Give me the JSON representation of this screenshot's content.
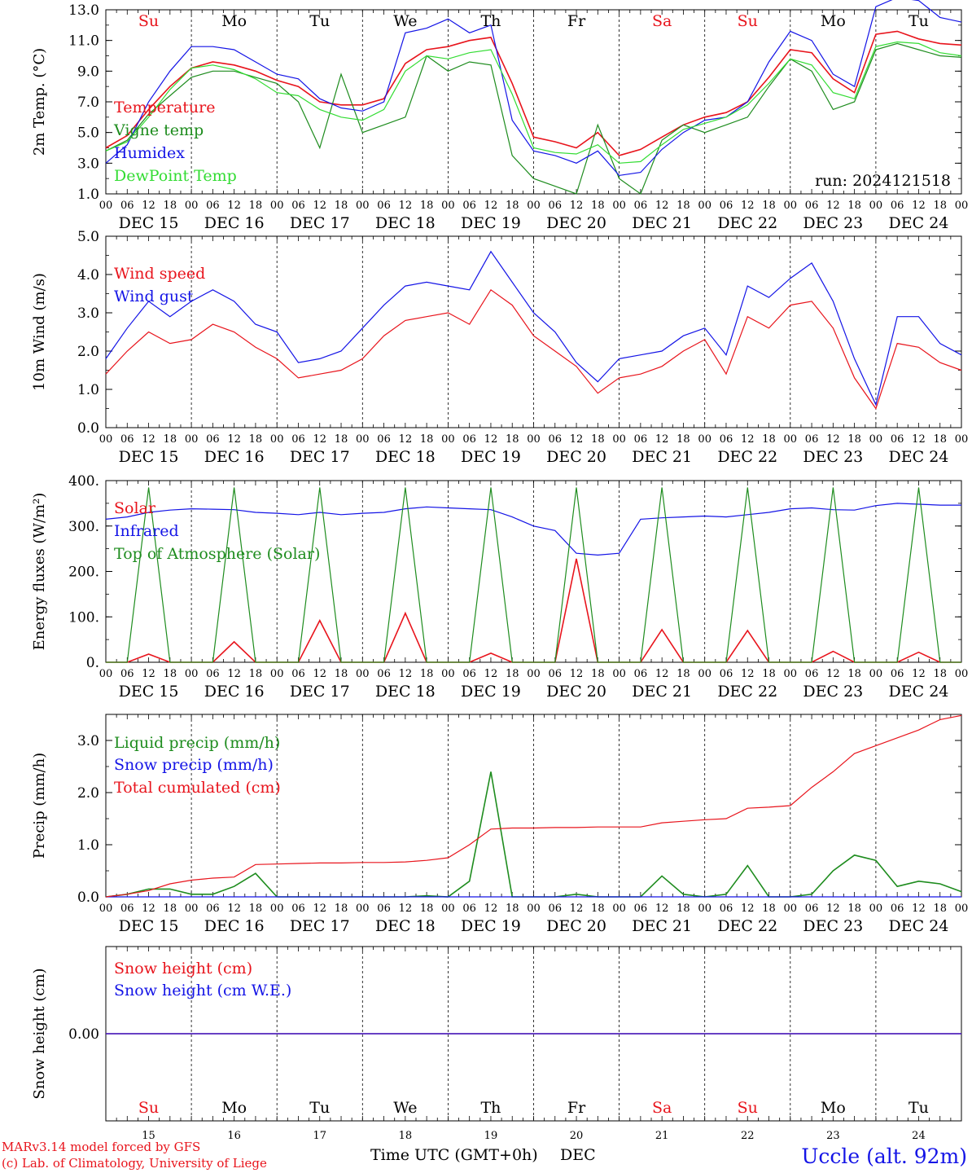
{
  "footer": {
    "credit_line1": "MARv3.14 model forced by GFS",
    "credit_line2": "(c) Lab. of Climatology, University of Liege",
    "time_label": "Time UTC (GMT+0h)",
    "month_label": "DEC",
    "station": "Uccle (alt. 92m)"
  },
  "colors": {
    "red": "#e8141c",
    "blue": "#1414e6",
    "dark_green": "#1e8c1e",
    "light_green": "#32dc32",
    "weekend": "#e8141c",
    "weekday": "#000000"
  },
  "days": {
    "weekday_abbr": [
      "Su",
      "Mo",
      "Tu",
      "We",
      "Th",
      "Fr",
      "Sa",
      "Su",
      "Mo",
      "Tu"
    ],
    "weekend_flags": [
      true,
      false,
      false,
      false,
      false,
      false,
      true,
      true,
      false,
      false
    ],
    "date_labels": [
      "DEC 15",
      "DEC 16",
      "DEC 17",
      "DEC 18",
      "DEC 19",
      "DEC 20",
      "DEC 21",
      "DEC 22",
      "DEC 23",
      "DEC 24"
    ],
    "day_numbers": [
      "15",
      "16",
      "17",
      "18",
      "19",
      "20",
      "21",
      "22",
      "23",
      "24"
    ],
    "hour_ticks": [
      "00",
      "06",
      "12",
      "18"
    ],
    "final_hour": "00"
  },
  "chart_data": [
    {
      "type": "line",
      "ylabel": "2m Temp. (°C)",
      "ylim": [
        1.0,
        13.0
      ],
      "ytick_labels": [
        "1.0",
        "3.0",
        "5.0",
        "7.0",
        "9.0",
        "11.0",
        "13.0"
      ],
      "annotation": "run: 2024121518",
      "x_hours": [
        0,
        6,
        12,
        18,
        24,
        30,
        36,
        42,
        48,
        54,
        60,
        66,
        72,
        78,
        84,
        90,
        96,
        102,
        108,
        114,
        120,
        126,
        132,
        138,
        144,
        150,
        156,
        162,
        168,
        174,
        180,
        186,
        192,
        198,
        204,
        210,
        216,
        222,
        228,
        234,
        240
      ],
      "series": [
        {
          "name": "Temperature",
          "color": "#e8141c",
          "values": [
            4.0,
            4.8,
            6.5,
            8.0,
            9.2,
            9.6,
            9.4,
            9.0,
            8.4,
            8.0,
            7.0,
            6.8,
            6.8,
            7.2,
            9.5,
            10.4,
            10.6,
            11.0,
            11.2,
            8.2,
            4.7,
            4.4,
            4.0,
            5.0,
            3.5,
            3.9,
            4.7,
            5.5,
            6.0,
            6.3,
            7.0,
            8.6,
            10.4,
            10.2,
            8.5,
            7.6,
            11.4,
            11.6,
            11.1,
            10.8,
            10.7
          ]
        },
        {
          "name": "Vigne temp",
          "color": "#1e8c1e",
          "values": [
            3.8,
            4.5,
            6.2,
            7.4,
            8.6,
            9.0,
            9.0,
            8.6,
            8.2,
            7.0,
            4.0,
            8.8,
            5.0,
            5.5,
            6.0,
            10.0,
            9.0,
            9.6,
            9.4,
            3.5,
            2.0,
            1.5,
            1.0,
            5.5,
            2.0,
            1.0,
            4.5,
            5.5,
            5.0,
            5.5,
            6.0,
            8.0,
            9.8,
            9.0,
            6.5,
            7.0,
            10.4,
            10.8,
            10.4,
            10.0,
            9.9
          ]
        },
        {
          "name": "Humidex",
          "color": "#1414e6",
          "values": [
            3.0,
            4.2,
            7.0,
            9.0,
            10.6,
            10.6,
            10.4,
            9.6,
            8.8,
            8.5,
            7.2,
            6.6,
            6.4,
            7.0,
            11.5,
            11.8,
            12.4,
            11.5,
            12.0,
            5.8,
            3.8,
            3.5,
            3.0,
            3.8,
            2.2,
            2.4,
            3.9,
            5.0,
            5.8,
            6.0,
            7.0,
            9.6,
            11.6,
            11.0,
            8.8,
            8.0,
            13.2,
            13.8,
            13.6,
            12.5,
            12.2
          ]
        },
        {
          "name": "DewPoint Temp",
          "color": "#32dc32",
          "values": [
            3.8,
            4.4,
            6.0,
            7.8,
            9.2,
            9.4,
            9.1,
            8.5,
            7.6,
            7.4,
            6.5,
            6.0,
            5.8,
            6.5,
            9.0,
            10.0,
            9.8,
            10.2,
            10.4,
            7.5,
            4.0,
            3.7,
            3.6,
            4.2,
            3.0,
            3.1,
            4.2,
            5.2,
            5.6,
            6.0,
            6.8,
            8.2,
            9.8,
            9.4,
            7.6,
            7.2,
            10.6,
            10.9,
            10.8,
            10.2,
            10.0
          ]
        }
      ]
    },
    {
      "type": "line",
      "ylabel": "10m Wind (m/s)",
      "ylim": [
        0.0,
        5.0
      ],
      "ytick_labels": [
        "0.0",
        "1.0",
        "2.0",
        "3.0",
        "4.0",
        "5.0"
      ],
      "x_hours": [
        0,
        6,
        12,
        18,
        24,
        30,
        36,
        42,
        48,
        54,
        60,
        66,
        72,
        78,
        84,
        90,
        96,
        102,
        108,
        114,
        120,
        126,
        132,
        138,
        144,
        150,
        156,
        162,
        168,
        174,
        180,
        186,
        192,
        198,
        204,
        210,
        216,
        222,
        228,
        234,
        240
      ],
      "series": [
        {
          "name": "Wind speed",
          "color": "#e8141c",
          "values": [
            1.4,
            2.0,
            2.5,
            2.2,
            2.3,
            2.7,
            2.5,
            2.1,
            1.8,
            1.3,
            1.4,
            1.5,
            1.8,
            2.4,
            2.8,
            2.9,
            3.0,
            2.7,
            3.6,
            3.2,
            2.4,
            2.0,
            1.6,
            0.9,
            1.3,
            1.4,
            1.6,
            2.0,
            2.3,
            1.4,
            2.9,
            2.6,
            3.2,
            3.3,
            2.6,
            1.3,
            0.5,
            2.2,
            2.1,
            1.7,
            1.5
          ]
        },
        {
          "name": "Wind gust",
          "color": "#1414e6",
          "values": [
            1.8,
            2.6,
            3.3,
            2.9,
            3.3,
            3.6,
            3.3,
            2.7,
            2.5,
            1.7,
            1.8,
            2.0,
            2.6,
            3.2,
            3.7,
            3.8,
            3.7,
            3.6,
            4.6,
            3.8,
            3.0,
            2.5,
            1.7,
            1.2,
            1.8,
            1.9,
            2.0,
            2.4,
            2.6,
            1.9,
            3.7,
            3.4,
            3.9,
            4.3,
            3.3,
            1.8,
            0.6,
            2.9,
            2.9,
            2.2,
            1.9
          ]
        }
      ]
    },
    {
      "type": "line",
      "ylabel": "Energy fluxes (W/m²)",
      "ylim": [
        0,
        400
      ],
      "ytick_labels": [
        "0.",
        "100.",
        "200.",
        "300.",
        "400."
      ],
      "x_hours": [
        0,
        6,
        12,
        18,
        24,
        30,
        36,
        42,
        48,
        54,
        60,
        66,
        72,
        78,
        84,
        90,
        96,
        102,
        108,
        114,
        120,
        126,
        132,
        138,
        144,
        150,
        156,
        162,
        168,
        174,
        180,
        186,
        192,
        198,
        204,
        210,
        216,
        222,
        228,
        234,
        240
      ],
      "series": [
        {
          "name": "Solar",
          "color": "#e8141c",
          "values": [
            0,
            0,
            18,
            0,
            0,
            0,
            45,
            0,
            0,
            0,
            92,
            0,
            0,
            0,
            108,
            0,
            0,
            0,
            20,
            0,
            0,
            0,
            228,
            0,
            0,
            0,
            72,
            0,
            0,
            0,
            70,
            0,
            0,
            0,
            24,
            0,
            0,
            0,
            22,
            0,
            0
          ]
        },
        {
          "name": "Infrared",
          "color": "#1414e6",
          "values": [
            315,
            320,
            330,
            335,
            338,
            337,
            336,
            330,
            328,
            325,
            330,
            325,
            328,
            330,
            338,
            342,
            340,
            338,
            336,
            320,
            300,
            290,
            240,
            236,
            240,
            315,
            318,
            320,
            322,
            320,
            325,
            330,
            338,
            340,
            336,
            335,
            345,
            350,
            348,
            346,
            346
          ]
        },
        {
          "name": "Top of Atmosphere (Solar)",
          "color": "#1e8c1e",
          "values": [
            0,
            0,
            385,
            0,
            0,
            0,
            385,
            0,
            0,
            0,
            385,
            0,
            0,
            0,
            385,
            0,
            0,
            0,
            385,
            0,
            0,
            0,
            385,
            0,
            0,
            0,
            385,
            0,
            0,
            0,
            385,
            0,
            0,
            0,
            385,
            0,
            0,
            0,
            385,
            0,
            0
          ]
        }
      ]
    },
    {
      "type": "line",
      "ylabel": "Precip (mm/h)",
      "ylim": [
        0.0,
        3.5
      ],
      "ytick_labels": [
        "0.0",
        "1.0",
        "2.0",
        "3.0"
      ],
      "x_hours": [
        0,
        6,
        12,
        18,
        24,
        30,
        36,
        42,
        48,
        54,
        60,
        66,
        72,
        78,
        84,
        90,
        96,
        102,
        108,
        114,
        120,
        126,
        132,
        138,
        144,
        150,
        156,
        162,
        168,
        174,
        180,
        186,
        192,
        198,
        204,
        210,
        216,
        222,
        228,
        234,
        240
      ],
      "series": [
        {
          "name": "Liquid precip (mm/h)",
          "color": "#1e8c1e",
          "values": [
            0.0,
            0.05,
            0.15,
            0.15,
            0.05,
            0.05,
            0.2,
            0.45,
            0.0,
            0.0,
            0.0,
            0.0,
            0.0,
            0.0,
            0.0,
            0.02,
            0.0,
            0.3,
            2.4,
            0.0,
            0.0,
            0.0,
            0.05,
            0.0,
            0.0,
            0.0,
            0.4,
            0.05,
            0.0,
            0.05,
            0.6,
            0.0,
            0.0,
            0.05,
            0.5,
            0.8,
            0.7,
            0.2,
            0.3,
            0.25,
            0.1
          ]
        },
        {
          "name": "Snow precip (mm/h)",
          "color": "#1414e6",
          "values": [
            0,
            0,
            0,
            0,
            0,
            0,
            0,
            0,
            0,
            0,
            0,
            0,
            0,
            0,
            0,
            0,
            0,
            0,
            0,
            0,
            0,
            0,
            0,
            0,
            0,
            0,
            0,
            0,
            0,
            0,
            0,
            0,
            0,
            0,
            0,
            0,
            0,
            0,
            0,
            0,
            0
          ]
        },
        {
          "name": "Total cumulated (cm)",
          "color": "#e8141c",
          "values": [
            0.0,
            0.05,
            0.12,
            0.25,
            0.32,
            0.36,
            0.38,
            0.62,
            0.63,
            0.64,
            0.65,
            0.65,
            0.66,
            0.66,
            0.67,
            0.7,
            0.75,
            1.0,
            1.3,
            1.32,
            1.32,
            1.33,
            1.33,
            1.34,
            1.34,
            1.34,
            1.42,
            1.45,
            1.48,
            1.5,
            1.7,
            1.72,
            1.75,
            2.1,
            2.4,
            2.75,
            2.9,
            3.05,
            3.2,
            3.4,
            3.48
          ]
        }
      ]
    },
    {
      "type": "line",
      "ylabel": "Snow height (cm)",
      "ylim": [
        -1.0,
        1.0
      ],
      "ytick_labels": [
        "0.00"
      ],
      "x_hours": [
        0,
        240
      ],
      "series": [
        {
          "name": "Snow height (cm)",
          "color": "#e8141c",
          "values": [
            0,
            0
          ]
        },
        {
          "name": "Snow height (cm W.E.)",
          "color": "#1414e6",
          "values": [
            0,
            0
          ]
        }
      ]
    }
  ]
}
